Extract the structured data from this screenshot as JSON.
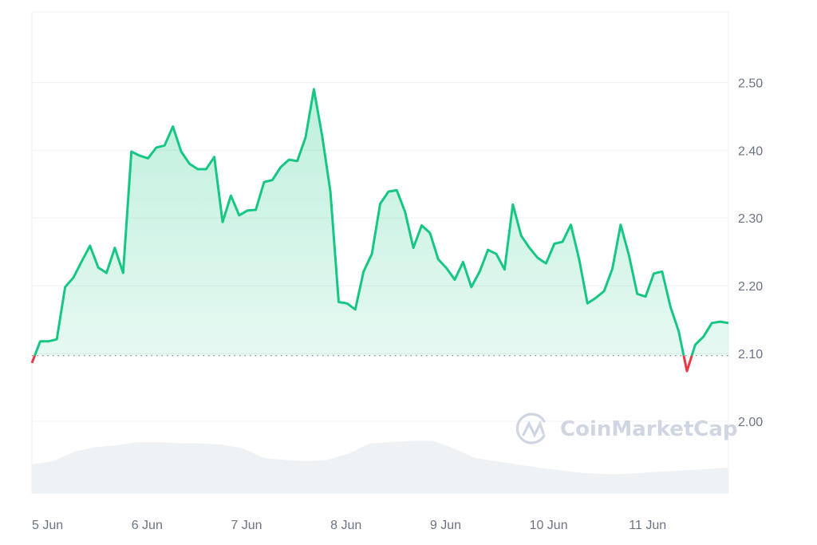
{
  "chart_data": {
    "type": "line",
    "title": "",
    "xlabel": "",
    "ylabel": "",
    "x_tick_labels": [
      "5 Jun",
      "6 Jun",
      "7 Jun",
      "8 Jun",
      "9 Jun",
      "10 Jun",
      "11 Jun"
    ],
    "y_tick_labels": [
      "2.50",
      "2.40",
      "2.30",
      "2.20",
      "2.10",
      "2.00"
    ],
    "y_ticks": [
      2.5,
      2.4,
      2.3,
      2.2,
      2.1,
      2.0
    ],
    "ylim": [
      1.894,
      2.604
    ],
    "grid": "horizontal",
    "baseline_price": 2.097,
    "colors": {
      "up": "#16c784",
      "down": "#ea3943",
      "volume": "#eff2f5",
      "grid": "#eef0f3",
      "baseline": "#858ca2"
    },
    "watermark": "CoinMarketCap",
    "x": [
      "06-05 00:00",
      "06-05 02:00",
      "06-05 04:00",
      "06-05 06:00",
      "06-05 08:00",
      "06-05 10:00",
      "06-05 12:00",
      "06-05 14:00",
      "06-05 16:00",
      "06-05 18:00",
      "06-05 20:00",
      "06-05 22:00",
      "06-06 00:00",
      "06-06 02:00",
      "06-06 04:00",
      "06-06 06:00",
      "06-06 08:00",
      "06-06 10:00",
      "06-06 12:00",
      "06-06 14:00",
      "06-06 16:00",
      "06-06 18:00",
      "06-06 20:00",
      "06-06 22:00",
      "06-07 00:00",
      "06-07 02:00",
      "06-07 04:00",
      "06-07 06:00",
      "06-07 08:00",
      "06-07 10:00",
      "06-07 12:00",
      "06-07 14:00",
      "06-07 16:00",
      "06-07 18:00",
      "06-07 20:00",
      "06-07 22:00",
      "06-08 00:00",
      "06-08 02:00",
      "06-08 04:00",
      "06-08 06:00",
      "06-08 08:00",
      "06-08 10:00",
      "06-08 12:00",
      "06-08 14:00",
      "06-08 16:00",
      "06-08 18:00",
      "06-08 20:00",
      "06-08 22:00",
      "06-09 00:00",
      "06-09 02:00",
      "06-09 04:00",
      "06-09 06:00",
      "06-09 08:00",
      "06-09 10:00",
      "06-09 12:00",
      "06-09 14:00",
      "06-09 16:00",
      "06-09 18:00",
      "06-09 20:00",
      "06-09 22:00",
      "06-10 00:00",
      "06-10 02:00",
      "06-10 04:00",
      "06-10 06:00",
      "06-10 08:00",
      "06-10 10:00",
      "06-10 12:00",
      "06-10 14:00",
      "06-10 16:00",
      "06-10 18:00",
      "06-10 20:00",
      "06-10 22:00",
      "06-11 00:00",
      "06-11 02:00",
      "06-11 04:00",
      "06-11 06:00",
      "06-11 08:00",
      "06-11 10:00",
      "06-11 12:00",
      "06-11 14:00",
      "06-11 16:00",
      "06-11 18:00",
      "06-11 20:00",
      "06-11 22:00",
      "06-12 00:00"
    ],
    "series": [
      {
        "values": [
          2.086,
          2.118,
          2.118,
          2.121,
          2.198,
          2.212,
          2.236,
          2.259,
          2.227,
          2.219,
          2.256,
          2.219,
          2.398,
          2.392,
          2.388,
          2.404,
          2.407,
          2.435,
          2.398,
          2.38,
          2.372,
          2.372,
          2.39,
          2.294,
          2.333,
          2.304,
          2.311,
          2.312,
          2.353,
          2.356,
          2.375,
          2.386,
          2.384,
          2.419,
          2.49,
          2.421,
          2.339,
          2.176,
          2.174,
          2.165,
          2.221,
          2.247,
          2.321,
          2.339,
          2.341,
          2.309,
          2.256,
          2.289,
          2.278,
          2.239,
          2.226,
          2.209,
          2.235,
          2.198,
          2.221,
          2.253,
          2.247,
          2.224,
          2.32,
          2.274,
          2.256,
          2.241,
          2.233,
          2.262,
          2.265,
          2.29,
          2.239,
          2.174,
          2.182,
          2.192,
          2.225,
          2.29,
          2.245,
          2.188,
          2.184,
          2.218,
          2.221,
          2.169,
          2.133,
          2.074,
          2.113,
          2.125,
          2.145,
          2.147,
          2.145
        ]
      }
    ],
    "volume_relative": [
      0.45,
      0.5,
      0.65,
      0.72,
      0.75,
      0.8,
      0.8,
      0.78,
      0.78,
      0.76,
      0.7,
      0.55,
      0.52,
      0.5,
      0.52,
      0.62,
      0.78,
      0.8,
      0.82,
      0.82,
      0.7,
      0.55,
      0.5,
      0.45,
      0.4,
      0.36,
      0.32,
      0.3,
      0.3,
      0.32,
      0.34,
      0.36,
      0.38,
      0.4
    ]
  }
}
